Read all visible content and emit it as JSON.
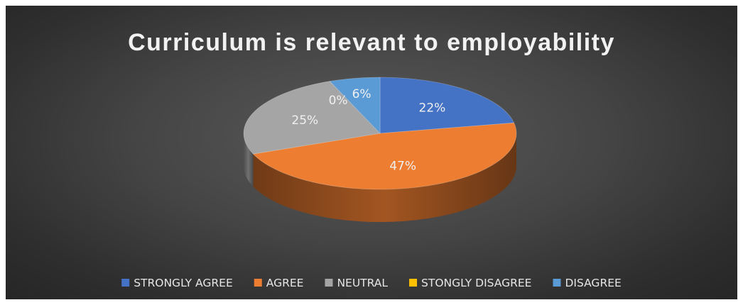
{
  "chart_data": {
    "type": "pie",
    "style": "3d",
    "title": "Curriculum is relevant to employability",
    "categories": [
      "STRONGLY AGREE",
      "AGREE",
      "NEUTRAL",
      "STONGLY DISAGREE",
      "DISAGREE"
    ],
    "values": [
      22,
      47,
      25,
      0,
      6
    ],
    "data_labels": [
      "22%",
      "47%",
      "25%",
      "0%",
      "6%"
    ],
    "colors": [
      "#4472c4",
      "#ed7d31",
      "#a5a5a5",
      "#ffc000",
      "#5b9bd5"
    ],
    "legend_position": "bottom"
  }
}
